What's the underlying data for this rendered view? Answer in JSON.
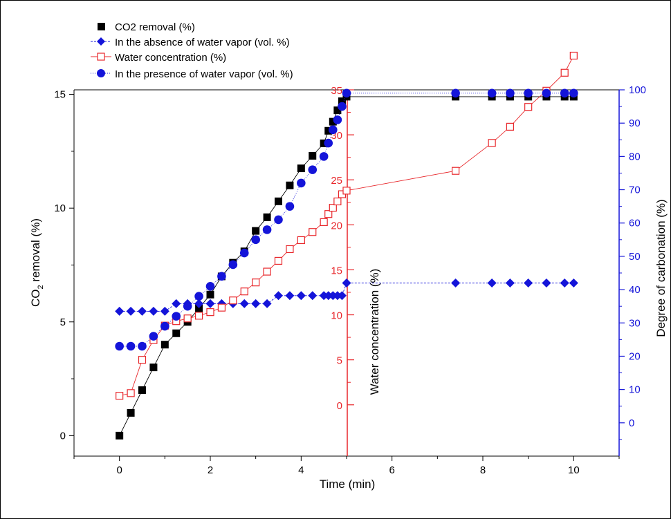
{
  "chart_data": {
    "type": "scatter",
    "legend_position": "top-left",
    "grid": false,
    "xlabel": "Time (min)",
    "xlim": [
      -1,
      11
    ],
    "x_ticks": [
      "0",
      "2",
      "4",
      "6",
      "8",
      "10"
    ],
    "axes": {
      "left": {
        "label_main": "CO",
        "label_sub": "2",
        "label_rest": " removal (%)",
        "ylim": [
          -0.9,
          15.2
        ],
        "ticks": [
          "0",
          "5",
          "10",
          "15"
        ],
        "color": "#000000"
      },
      "middle": {
        "label": "Water concentration (%)",
        "ylim": [
          -5.7,
          35
        ],
        "ticks": [
          "0",
          "5",
          "10",
          "15",
          "20",
          "25",
          "30",
          "35"
        ],
        "color": "#e8262a"
      },
      "right": {
        "label": "Degree of carbonation (%)",
        "ylim": [
          -10,
          100
        ],
        "ticks": [
          "0",
          "10",
          "20",
          "30",
          "40",
          "50",
          "60",
          "70",
          "80",
          "90",
          "100"
        ],
        "color": "#1414d9"
      }
    },
    "series": [
      {
        "name": "CO2 removal (%)",
        "axis": "left",
        "color": "#000000",
        "marker": "square-filled",
        "x": [
          0,
          0.25,
          0.5,
          0.75,
          1.0,
          1.25,
          1.5,
          1.75,
          2.0,
          2.25,
          2.5,
          2.75,
          3.0,
          3.25,
          3.5,
          3.75,
          4.0,
          4.25,
          4.5,
          4.6,
          4.7,
          4.8,
          4.9,
          5.0,
          7.4,
          8.2,
          8.6,
          9.0,
          9.4,
          9.8,
          10.0
        ],
        "y": [
          0,
          1.0,
          2.0,
          3.0,
          4.0,
          4.5,
          5.0,
          5.6,
          6.2,
          7.0,
          7.6,
          8.1,
          9.0,
          9.6,
          10.3,
          11.0,
          11.75,
          12.3,
          12.85,
          13.4,
          13.8,
          14.3,
          14.7,
          14.9,
          14.9,
          14.9,
          14.9,
          14.9,
          14.9,
          14.9,
          14.9
        ]
      },
      {
        "name": "In the absence of water vapor (vol. %)",
        "axis": "right",
        "color": "#1414d9",
        "marker": "diamond-filled",
        "x": [
          0,
          0.25,
          0.5,
          0.75,
          1.0,
          1.25,
          1.5,
          1.75,
          2.0,
          2.25,
          2.5,
          2.75,
          3.0,
          3.25,
          3.5,
          3.75,
          4.0,
          4.25,
          4.5,
          4.6,
          4.7,
          4.8,
          4.9,
          5.0,
          7.4,
          8.2,
          8.6,
          9.0,
          9.4,
          9.8,
          10.0
        ],
        "y": [
          33.5,
          33.5,
          33.5,
          33.5,
          33.5,
          35.8,
          35.8,
          35.8,
          35.8,
          35.8,
          35.8,
          35.8,
          35.8,
          35.8,
          38.2,
          38.2,
          38.2,
          38.2,
          38.2,
          38.2,
          38.2,
          38.2,
          38.2,
          42.0,
          42.0,
          42.0,
          42.0,
          42.0,
          42.0,
          42.0,
          42.0
        ]
      },
      {
        "name": "Water concentration (%)",
        "axis": "middle",
        "color": "#e8262a",
        "marker": "square-open",
        "x": [
          0,
          0.25,
          0.5,
          0.75,
          1.0,
          1.25,
          1.5,
          1.75,
          2.0,
          2.25,
          2.5,
          2.75,
          3.0,
          3.25,
          3.5,
          3.75,
          4.0,
          4.25,
          4.5,
          4.6,
          4.7,
          4.8,
          4.9,
          5.0,
          7.4,
          8.2,
          8.6,
          9.0,
          9.4,
          9.8,
          10.0
        ],
        "y": [
          1.0,
          1.3,
          5.0,
          7.2,
          8.8,
          9.3,
          9.6,
          9.9,
          10.3,
          10.8,
          11.6,
          12.6,
          13.6,
          14.8,
          16.0,
          17.3,
          18.3,
          19.2,
          20.3,
          21.2,
          21.9,
          22.6,
          23.4,
          23.8,
          26.0,
          29.1,
          30.9,
          33.1,
          34.9,
          36.9,
          38.8
        ]
      },
      {
        "name": "In the presence of water vapor (vol. %)",
        "axis": "right",
        "color": "#1414d9",
        "marker": "circle-filled",
        "x": [
          0,
          0.25,
          0.5,
          0.75,
          1.0,
          1.25,
          1.5,
          1.75,
          2.0,
          2.25,
          2.5,
          2.75,
          3.0,
          3.25,
          3.5,
          3.75,
          4.0,
          4.25,
          4.5,
          4.6,
          4.7,
          4.8,
          4.9,
          5.0,
          7.4,
          8.2,
          8.6,
          9.0,
          9.4,
          9.8,
          10.0
        ],
        "y": [
          23.0,
          23.0,
          23.0,
          26.0,
          29.0,
          32.0,
          35.0,
          38.0,
          41.0,
          44.0,
          47.5,
          51.0,
          55.0,
          58.0,
          61.0,
          65.0,
          72.0,
          76.0,
          80.0,
          84.0,
          88.0,
          91.0,
          95.0,
          99.0,
          99.0,
          99.0,
          99.0,
          99.0,
          99.0,
          99.0,
          99.0
        ]
      }
    ]
  }
}
